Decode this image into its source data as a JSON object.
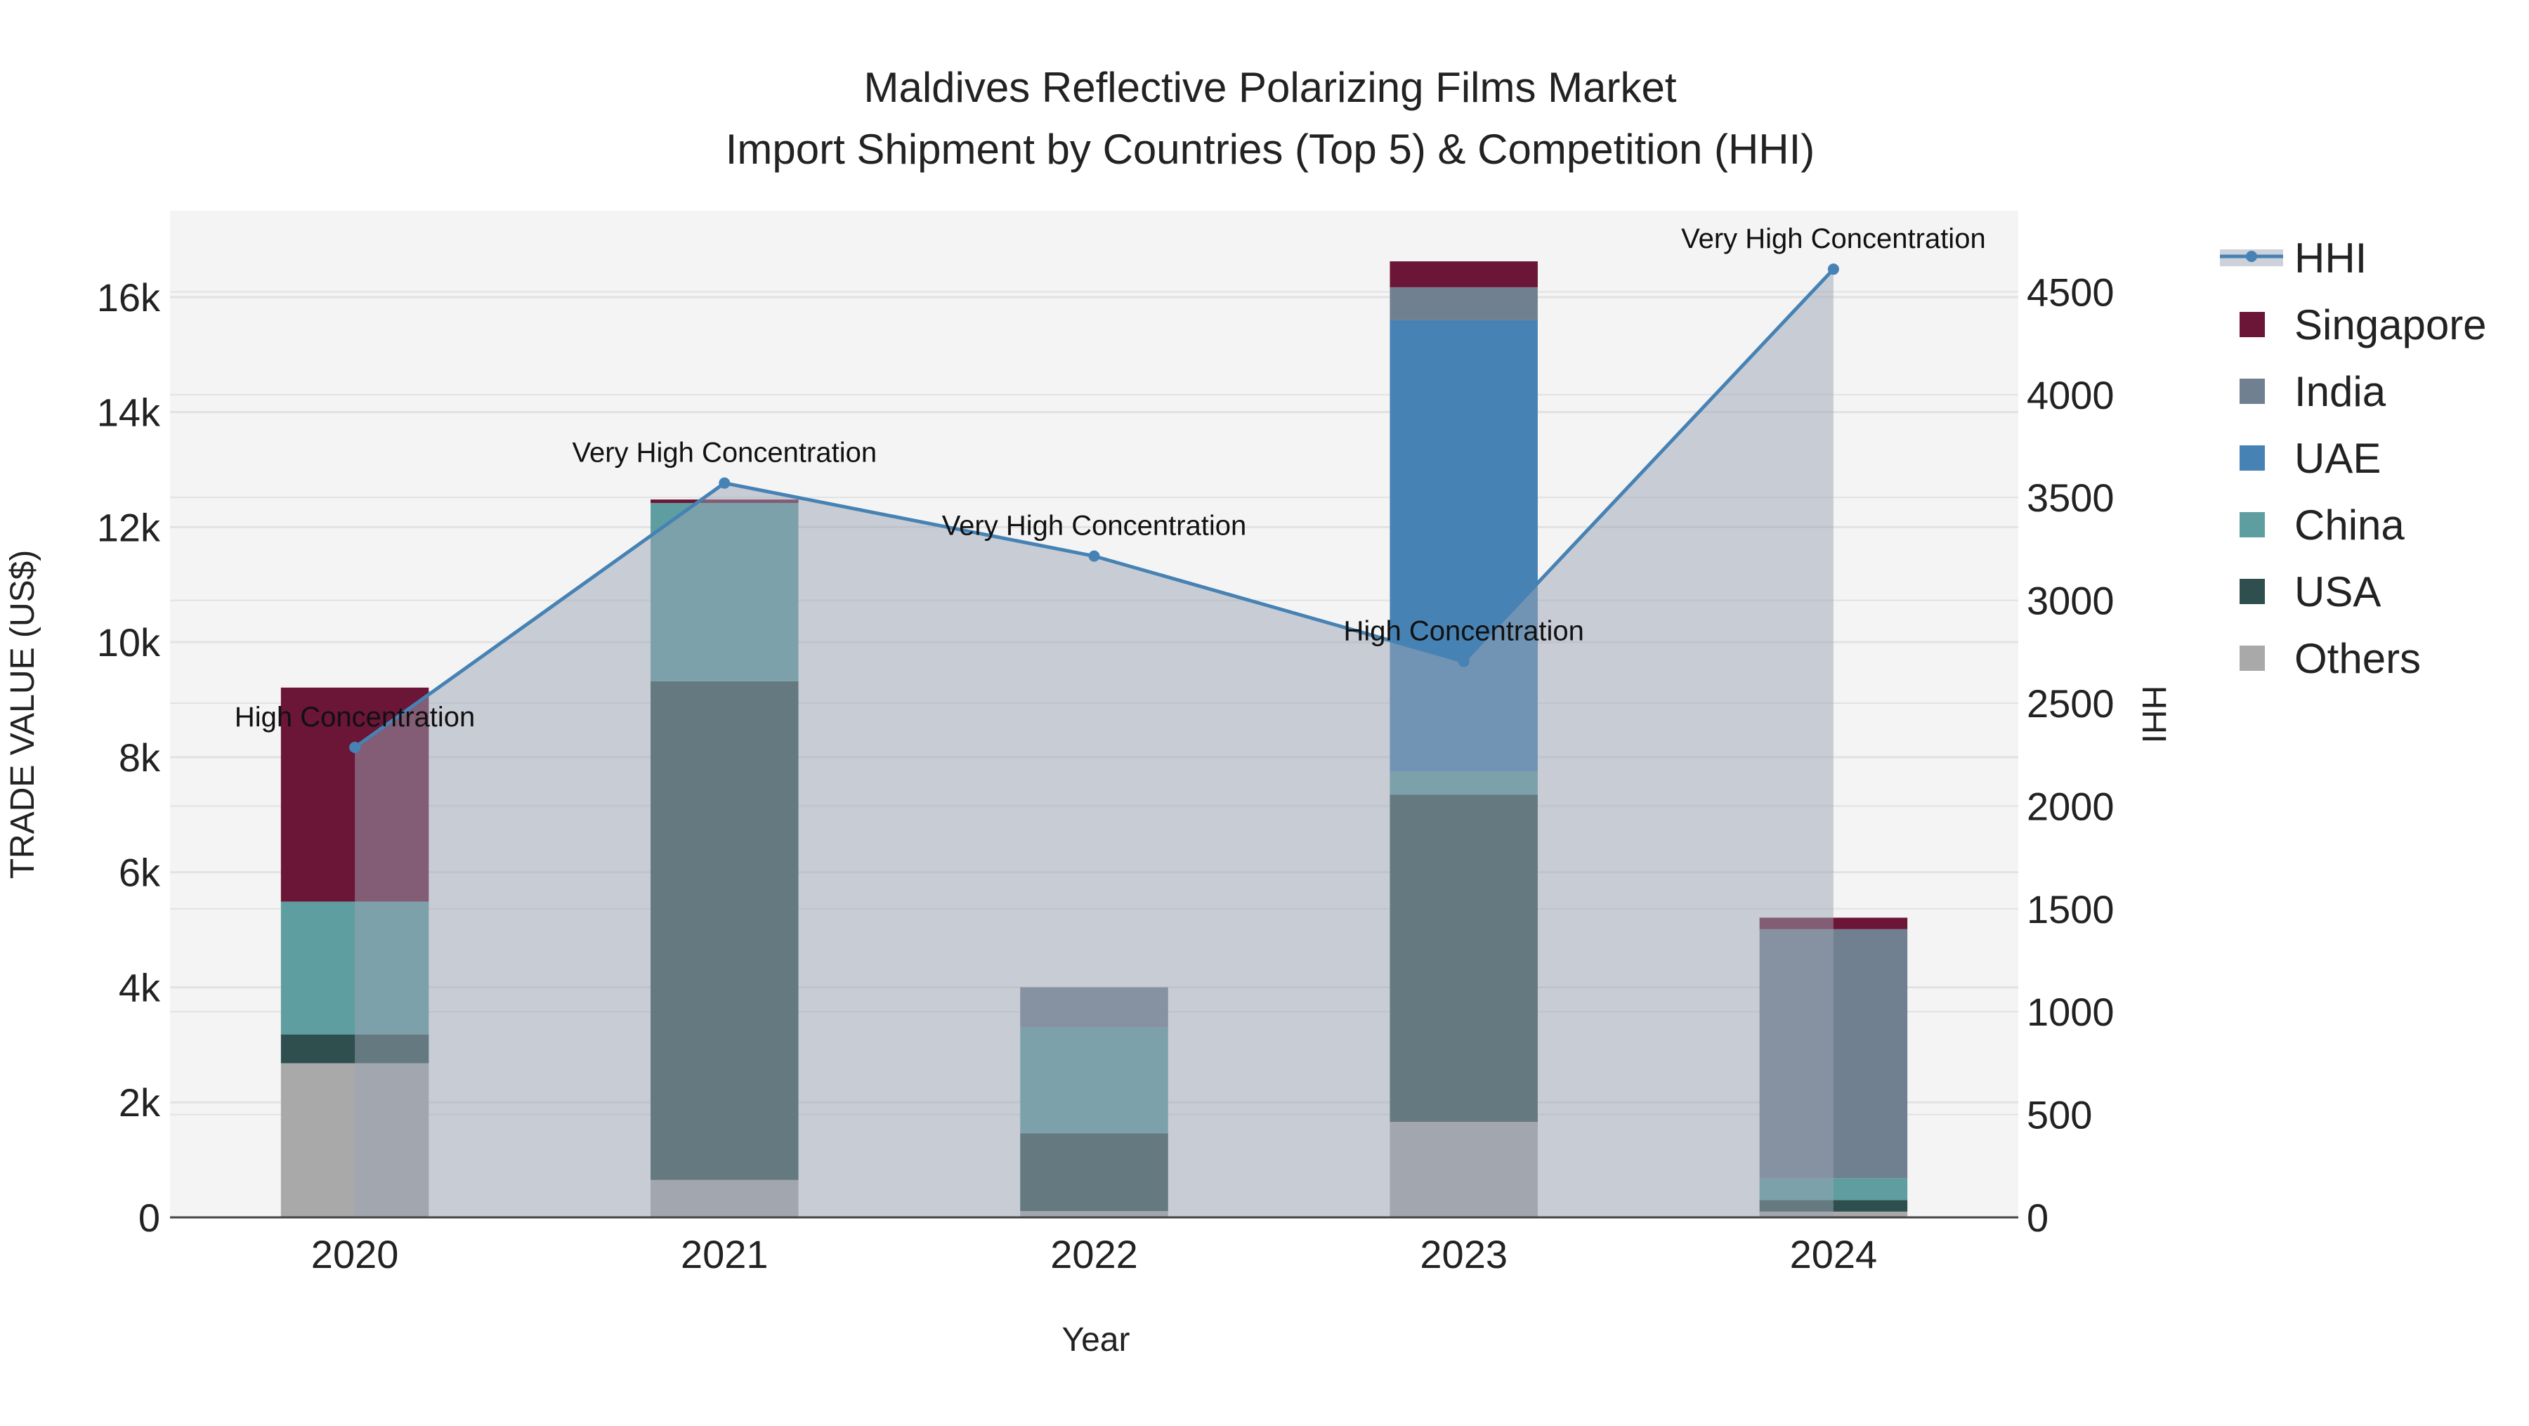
{
  "chart_data": {
    "type": "bar",
    "title_line1": "Maldives Reflective Polarizing Films Market",
    "title_line2": "Import Shipment by Countries (Top 5) & Competition (HHI)",
    "xlabel": "Year",
    "ylabel": "TRADE VALUE (US$)",
    "y2label": "HHI",
    "categories": [
      "2020",
      "2021",
      "2022",
      "2023",
      "2024"
    ],
    "ylim": [
      0,
      17500
    ],
    "y2lim": [
      0,
      4894
    ],
    "yticks": [
      0,
      2000,
      4000,
      6000,
      8000,
      10000,
      12000,
      14000,
      16000
    ],
    "ytick_labels": [
      "0",
      "2k",
      "4k",
      "6k",
      "8k",
      "10k",
      "12k",
      "14k",
      "16k"
    ],
    "y2ticks": [
      0,
      500,
      1000,
      1500,
      2000,
      2500,
      3000,
      3500,
      4000,
      4500
    ],
    "y2tick_labels": [
      "0",
      "500",
      "1000",
      "1500",
      "2000",
      "2500",
      "3000",
      "3500",
      "4000",
      "4500"
    ],
    "grid": true,
    "legend_position": "right",
    "series": [
      {
        "name": "Others",
        "color": "#a9a9a9",
        "values": [
          2680,
          650,
          110,
          1660,
          100
        ]
      },
      {
        "name": "USA",
        "color": "#2f4f4f",
        "values": [
          500,
          8670,
          1350,
          5690,
          200
        ]
      },
      {
        "name": "China",
        "color": "#5f9ea0",
        "values": [
          2310,
          3100,
          1840,
          400,
          380
        ]
      },
      {
        "name": "UAE",
        "color": "#4682b4",
        "values": [
          0,
          0,
          0,
          7850,
          0
        ]
      },
      {
        "name": "India",
        "color": "#708090",
        "values": [
          0,
          0,
          700,
          570,
          4330
        ]
      },
      {
        "name": "Singapore",
        "color": "#6b1537",
        "values": [
          3720,
          60,
          0,
          450,
          200
        ]
      }
    ],
    "hhi": {
      "name": "HHI",
      "color": "#4682b4",
      "values": [
        2285,
        3570,
        3215,
        2703,
        4610
      ],
      "annotations": [
        "High Concentration",
        "Very High Concentration",
        "Very High Concentration",
        "High Concentration",
        "Very High Concentration"
      ]
    },
    "legend_order": [
      "HHI",
      "Singapore",
      "India",
      "UAE",
      "China",
      "USA",
      "Others"
    ]
  }
}
